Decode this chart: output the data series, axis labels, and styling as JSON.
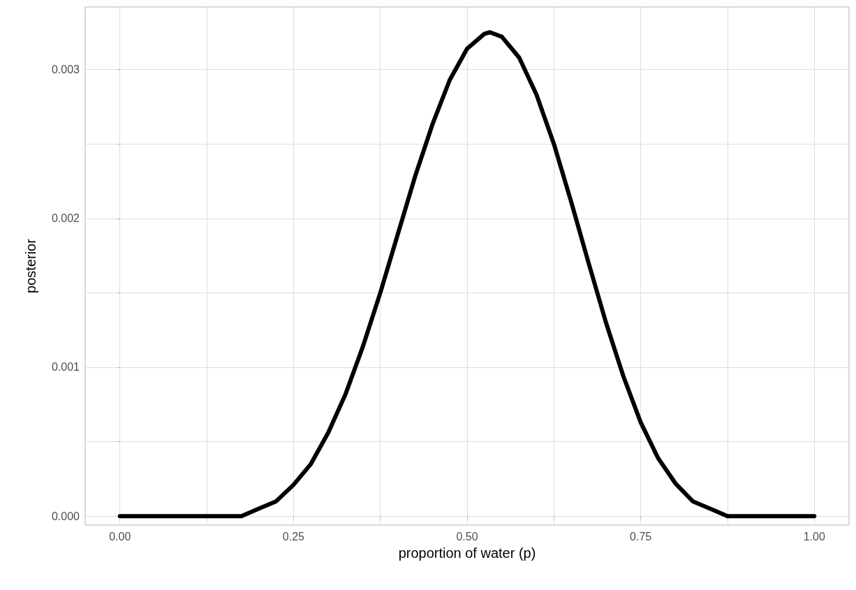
{
  "chart_data": {
    "type": "line",
    "xlabel": "proportion of water (p)",
    "ylabel": "posterior",
    "x": [
      0,
      0.025,
      0.05,
      0.075,
      0.1,
      0.125,
      0.15,
      0.175,
      0.2,
      0.225,
      0.25,
      0.275,
      0.3,
      0.325,
      0.35,
      0.375,
      0.4,
      0.425,
      0.45,
      0.475,
      0.5,
      0.525,
      0.533,
      0.55,
      0.575,
      0.6,
      0.625,
      0.65,
      0.675,
      0.7,
      0.725,
      0.75,
      0.775,
      0.8,
      0.825,
      0.85,
      0.875,
      0.9,
      0.925,
      0.95,
      0.975,
      1
    ],
    "series": [
      {
        "color": "#000000",
        "values": [
          0,
          0,
          0,
          0,
          0,
          0,
          0,
          0,
          5e-05,
          0.0001,
          0.00021,
          0.00035,
          0.00056,
          0.00082,
          0.00114,
          0.0015,
          0.00189,
          0.00228,
          0.00263,
          0.00293,
          0.00314,
          0.00324,
          0.00325,
          0.00322,
          0.00308,
          0.00283,
          0.0025,
          0.00211,
          0.0017,
          0.0013,
          0.00094,
          0.00063,
          0.00039,
          0.00022,
          0.0001,
          5e-05,
          0,
          0,
          0,
          0,
          0,
          0
        ]
      }
    ],
    "xlim": [
      -0.05,
      1.05
    ],
    "ylim": [
      -6e-05,
      0.00342
    ],
    "xticks": [
      {
        "value": 0,
        "label": "0.00"
      },
      {
        "value": 0.125,
        "label": null
      },
      {
        "value": 0.25,
        "label": "0.25"
      },
      {
        "value": 0.375,
        "label": null
      },
      {
        "value": 0.5,
        "label": "0.50"
      },
      {
        "value": 0.625,
        "label": null
      },
      {
        "value": 0.75,
        "label": "0.75"
      },
      {
        "value": 0.875,
        "label": null
      },
      {
        "value": 1,
        "label": "1.00"
      }
    ],
    "yticks": [
      {
        "value": 0,
        "label": "0.000"
      },
      {
        "value": 0.0005,
        "label": null
      },
      {
        "value": 0.001,
        "label": "0.001"
      },
      {
        "value": 0.0015,
        "label": null
      },
      {
        "value": 0.002,
        "label": "0.002"
      },
      {
        "value": 0.0025,
        "label": null
      },
      {
        "value": 0.003,
        "label": "0.003"
      }
    ],
    "grid": true,
    "marker": "none",
    "line_style": "solid"
  }
}
